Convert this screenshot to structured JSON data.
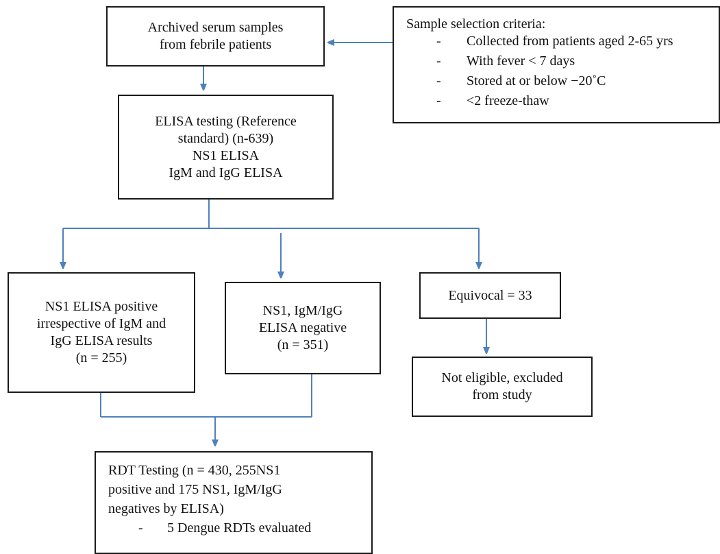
{
  "archived": {
    "lines": [
      "Archived serum samples",
      "from febrile patients"
    ]
  },
  "criteria": {
    "title": "Sample selection criteria:",
    "bullet": "-",
    "items": [
      "Collected from patients aged 2-65 yrs",
      "With fever < 7 days",
      "Stored at or below −20˚C",
      "<2 freeze-thaw"
    ]
  },
  "elisa": {
    "lines": [
      "ELISA testing (Reference",
      "standard) (n-639)",
      "NS1 ELISA",
      "IgM and IgG ELISA"
    ]
  },
  "ns1_positive": {
    "lines": [
      "NS1 ELISA positive",
      "irrespective of IgM and",
      "IgG ELISA results",
      "(n = 255)"
    ]
  },
  "negative": {
    "lines": [
      "NS1, IgM/IgG",
      "ELISA negative",
      "(n = 351)"
    ]
  },
  "equivocal": {
    "label": "Equivocal = 33"
  },
  "not_eligible": {
    "lines": [
      "Not eligible, excluded",
      "from study"
    ]
  },
  "rdt": {
    "lines": [
      "RDT Testing (n = 430, 255NS1",
      "positive and 175 NS1, IgM/IgG",
      "negatives by ELISA)"
    ],
    "bullet": "-",
    "bullet_text": "5 Dengue RDTs evaluated"
  },
  "colors": {
    "arrow": "#4f81bd",
    "border": "#1a1a1a"
  }
}
